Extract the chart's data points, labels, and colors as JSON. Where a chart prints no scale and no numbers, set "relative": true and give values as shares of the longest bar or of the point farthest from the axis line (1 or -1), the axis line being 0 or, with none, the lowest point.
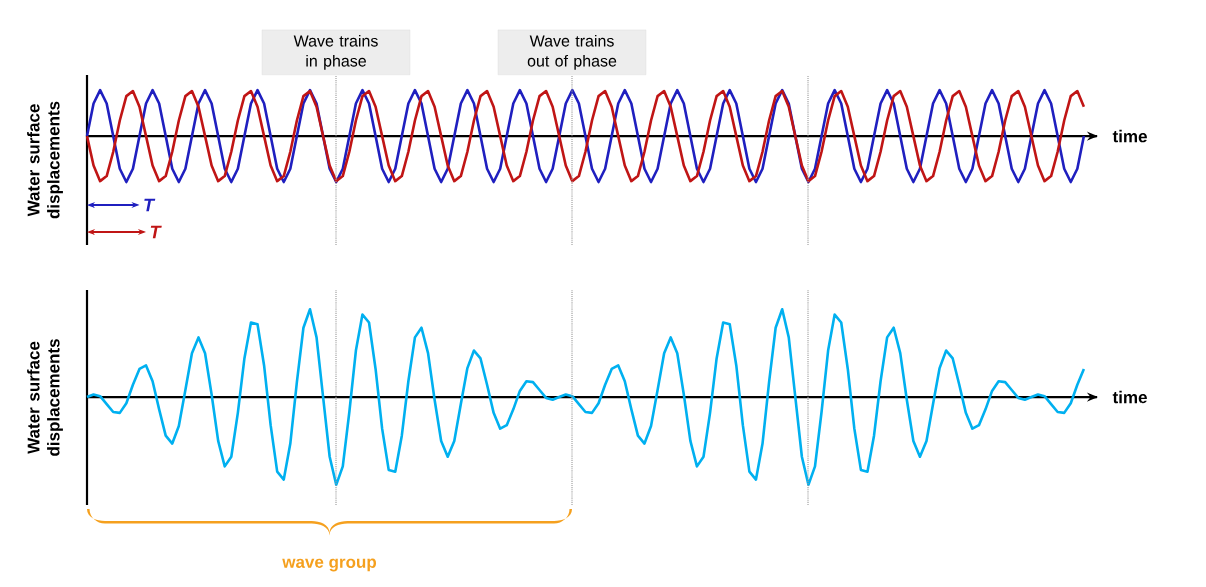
{
  "chart_data": [
    {
      "type": "line",
      "relative": true,
      "xlabel": "time",
      "ylabel": "Water surface displacements",
      "categories": [
        null,
        null,
        null,
        null,
        null,
        null,
        null,
        null,
        null,
        null,
        null,
        null,
        null,
        null,
        null,
        null,
        null,
        null,
        null,
        null,
        null,
        null,
        null,
        null,
        null,
        null,
        null,
        null,
        null,
        null,
        null,
        null,
        null,
        null,
        null,
        null,
        null,
        null,
        null,
        null,
        null,
        null,
        null,
        null,
        null,
        null,
        null,
        null,
        null,
        null,
        null,
        null,
        null,
        null,
        null,
        null,
        null,
        null,
        null,
        null,
        null,
        null,
        null,
        null,
        null,
        null,
        null,
        null,
        null,
        null,
        null,
        null,
        null,
        null,
        null,
        null,
        null,
        null,
        null,
        null,
        null,
        null,
        null,
        null,
        null,
        null,
        null,
        null,
        null,
        null,
        null,
        null,
        null,
        null,
        null,
        null,
        null,
        null,
        null,
        null,
        null,
        null,
        null,
        null,
        null,
        null,
        null,
        null,
        null,
        null,
        null,
        null,
        null,
        null,
        null,
        null,
        null,
        null,
        null,
        null,
        null,
        null,
        null,
        null,
        null,
        null,
        null,
        null,
        null,
        null,
        null,
        null,
        null,
        null,
        null,
        null,
        null,
        null,
        null,
        null,
        null,
        null,
        null,
        null,
        null,
        null,
        null,
        null,
        null,
        null,
        null,
        null,
        null
      ],
      "series": [
        {
          "color": "#1f1fbf",
          "values": [
            0,
            0.71,
            1,
            0.71,
            0,
            -0.71,
            -1,
            -0.71,
            0,
            0.71,
            1,
            0.71,
            0,
            -0.71,
            -1,
            -0.71,
            0,
            0.71,
            1,
            0.71,
            0,
            -0.71,
            -1,
            -0.71,
            0,
            0.71,
            1,
            0.71,
            0,
            -0.71,
            -1,
            -0.71,
            0,
            0.71,
            1,
            0.71,
            0,
            -0.71,
            -1,
            -0.71,
            0,
            0.71,
            1,
            0.71,
            0,
            -0.71,
            -1,
            -0.71,
            0,
            0.71,
            1,
            0.71,
            0,
            -0.71,
            -1,
            -0.71,
            0,
            0.71,
            1,
            0.71,
            0,
            -0.71,
            -1,
            -0.71,
            0,
            0.71,
            1,
            0.71,
            0,
            -0.71,
            -1,
            -0.71,
            0,
            0.71,
            1,
            0.71,
            0,
            -0.71,
            -1,
            -0.71,
            0,
            0.71,
            1,
            0.71,
            0,
            -0.71,
            -1,
            -0.71,
            0,
            0.71,
            1,
            0.71,
            0,
            -0.71,
            -1,
            -0.71,
            0,
            0.71,
            1,
            0.71,
            0,
            -0.71,
            -1,
            -0.71,
            0,
            0.71,
            1,
            0.71,
            0,
            -0.71,
            -1,
            -0.71,
            0,
            0.71,
            1,
            0.71,
            0,
            -0.71,
            -1,
            -0.71,
            0,
            0.71,
            1,
            0.71,
            0,
            -0.71,
            -1,
            -0.71,
            0,
            0.71,
            1,
            0.71,
            0,
            -0.71,
            -1,
            -0.71,
            0,
            0.71,
            1,
            0.71,
            0,
            -0.71,
            -1,
            -0.71,
            0,
            0.71,
            1,
            0.71,
            0,
            -0.71,
            -1,
            -0.71,
            0
          ]
        },
        {
          "color": "#c01515",
          "values": [
            0,
            -0.64,
            -0.98,
            -0.87,
            -0.34,
            0.34,
            0.87,
            0.98,
            0.64,
            0,
            -0.64,
            -0.98,
            -0.87,
            -0.34,
            0.34,
            0.87,
            0.98,
            0.64,
            0,
            -0.64,
            -0.98,
            -0.87,
            -0.34,
            0.34,
            0.87,
            0.98,
            0.64,
            0,
            -0.64,
            -0.98,
            -0.87,
            -0.34,
            0.34,
            0.87,
            0.98,
            0.64,
            0,
            -0.64,
            -0.98,
            -0.87,
            -0.34,
            0.34,
            0.87,
            0.98,
            0.64,
            0,
            -0.64,
            -0.98,
            -0.87,
            -0.34,
            0.34,
            0.87,
            0.98,
            0.64,
            0,
            -0.64,
            -0.98,
            -0.87,
            -0.34,
            0.34,
            0.87,
            0.98,
            0.64,
            0,
            -0.64,
            -0.98,
            -0.87,
            -0.34,
            0.34,
            0.87,
            0.98,
            0.64,
            0,
            -0.64,
            -0.98,
            -0.87,
            -0.34,
            0.34,
            0.87,
            0.98,
            0.64,
            0,
            -0.64,
            -0.98,
            -0.87,
            -0.34,
            0.34,
            0.87,
            0.98,
            0.64,
            0,
            -0.64,
            -0.98,
            -0.87,
            -0.34,
            0.34,
            0.87,
            0.98,
            0.64,
            0,
            -0.64,
            -0.98,
            -0.87,
            -0.34,
            0.34,
            0.87,
            0.98,
            0.64,
            0,
            -0.64,
            -0.98,
            -0.87,
            -0.34,
            0.34,
            0.87,
            0.98,
            0.64,
            0,
            -0.64,
            -0.98,
            -0.87,
            -0.34,
            0.34,
            0.87,
            0.98,
            0.64,
            0,
            -0.64,
            -0.98,
            -0.87,
            -0.34,
            0.34,
            0.87,
            0.98,
            0.64,
            0,
            -0.64,
            -0.98,
            -0.87,
            -0.34,
            0.34,
            0.87,
            0.98,
            0.64,
            0,
            -0.64,
            -0.98,
            -0.87,
            -0.34,
            0.34,
            0.87,
            0.98,
            0.64
          ]
        }
      ],
      "annotations": [
        "Wave trains in phase",
        "Wave trains out of phase",
        "T",
        "T"
      ]
    },
    {
      "type": "line",
      "relative": true,
      "xlabel": "time",
      "ylabel": "Water surface displacements",
      "categories": [
        null,
        null,
        null,
        null,
        null,
        null,
        null,
        null,
        null,
        null,
        null,
        null,
        null,
        null,
        null,
        null,
        null,
        null,
        null,
        null,
        null,
        null,
        null,
        null,
        null,
        null,
        null,
        null,
        null,
        null,
        null,
        null,
        null,
        null,
        null,
        null,
        null,
        null,
        null,
        null,
        null,
        null,
        null,
        null,
        null,
        null,
        null,
        null,
        null,
        null,
        null,
        null,
        null,
        null,
        null,
        null,
        null,
        null,
        null,
        null,
        null,
        null,
        null,
        null,
        null,
        null,
        null,
        null,
        null,
        null,
        null,
        null,
        null,
        null,
        null,
        null,
        null,
        null,
        null,
        null,
        null,
        null,
        null,
        null,
        null,
        null,
        null,
        null,
        null,
        null,
        null,
        null,
        null,
        null,
        null,
        null,
        null,
        null,
        null,
        null,
        null,
        null,
        null,
        null,
        null,
        null,
        null,
        null,
        null,
        null,
        null,
        null,
        null,
        null,
        null,
        null,
        null,
        null,
        null,
        null,
        null,
        null,
        null,
        null,
        null,
        null,
        null,
        null,
        null,
        null,
        null,
        null,
        null,
        null,
        null,
        null,
        null,
        null,
        null,
        null,
        null,
        null,
        null,
        null,
        null,
        null,
        null,
        null,
        null,
        null,
        null,
        null,
        null
      ],
      "series": [
        {
          "color": "#00b0f0",
          "values": [
            0,
            0.03,
            0.01,
            -0.08,
            -0.17,
            -0.18,
            -0.07,
            0.14,
            0.32,
            0.36,
            0.18,
            -0.14,
            -0.44,
            -0.53,
            -0.33,
            0.08,
            0.5,
            0.68,
            0.5,
            0.03,
            -0.5,
            -0.79,
            -0.68,
            -0.18,
            0.44,
            0.85,
            0.83,
            0.36,
            -0.32,
            -0.85,
            -0.94,
            -0.53,
            0.17,
            0.79,
            1,
            0.68,
            0,
            -0.68,
            -1,
            -0.79,
            -0.17,
            0.53,
            0.94,
            0.85,
            0.32,
            -0.36,
            -0.83,
            -0.85,
            -0.44,
            0.18,
            0.68,
            0.79,
            0.5,
            -0.03,
            -0.5,
            -0.68,
            -0.5,
            -0.08,
            0.33,
            0.53,
            0.44,
            0.14,
            -0.18,
            -0.36,
            -0.32,
            -0.14,
            0.07,
            0.18,
            0.17,
            0.08,
            -0.01,
            -0.03,
            0,
            0.03,
            0.01,
            -0.08,
            -0.17,
            -0.18,
            -0.07,
            0.14,
            0.32,
            0.36,
            0.18,
            -0.14,
            -0.44,
            -0.53,
            -0.33,
            0.08,
            0.5,
            0.68,
            0.5,
            0.03,
            -0.5,
            -0.79,
            -0.68,
            -0.18,
            0.44,
            0.85,
            0.83,
            0.36,
            -0.32,
            -0.85,
            -0.94,
            -0.53,
            0.17,
            0.79,
            1,
            0.68,
            0,
            -0.68,
            -1,
            -0.79,
            -0.17,
            0.53,
            0.94,
            0.85,
            0.32,
            -0.36,
            -0.83,
            -0.85,
            -0.44,
            0.18,
            0.68,
            0.79,
            0.5,
            -0.03,
            -0.5,
            -0.68,
            -0.5,
            -0.08,
            0.33,
            0.53,
            0.44,
            0.14,
            -0.18,
            -0.36,
            -0.32,
            -0.14,
            0.07,
            0.18,
            0.17,
            0.08,
            -0.01,
            -0.03,
            0,
            0.03,
            0.01,
            -0.08,
            -0.17,
            -0.18,
            -0.07,
            0.14,
            0.32
          ]
        }
      ],
      "annotations": [
        "wave group"
      ]
    }
  ]
}
